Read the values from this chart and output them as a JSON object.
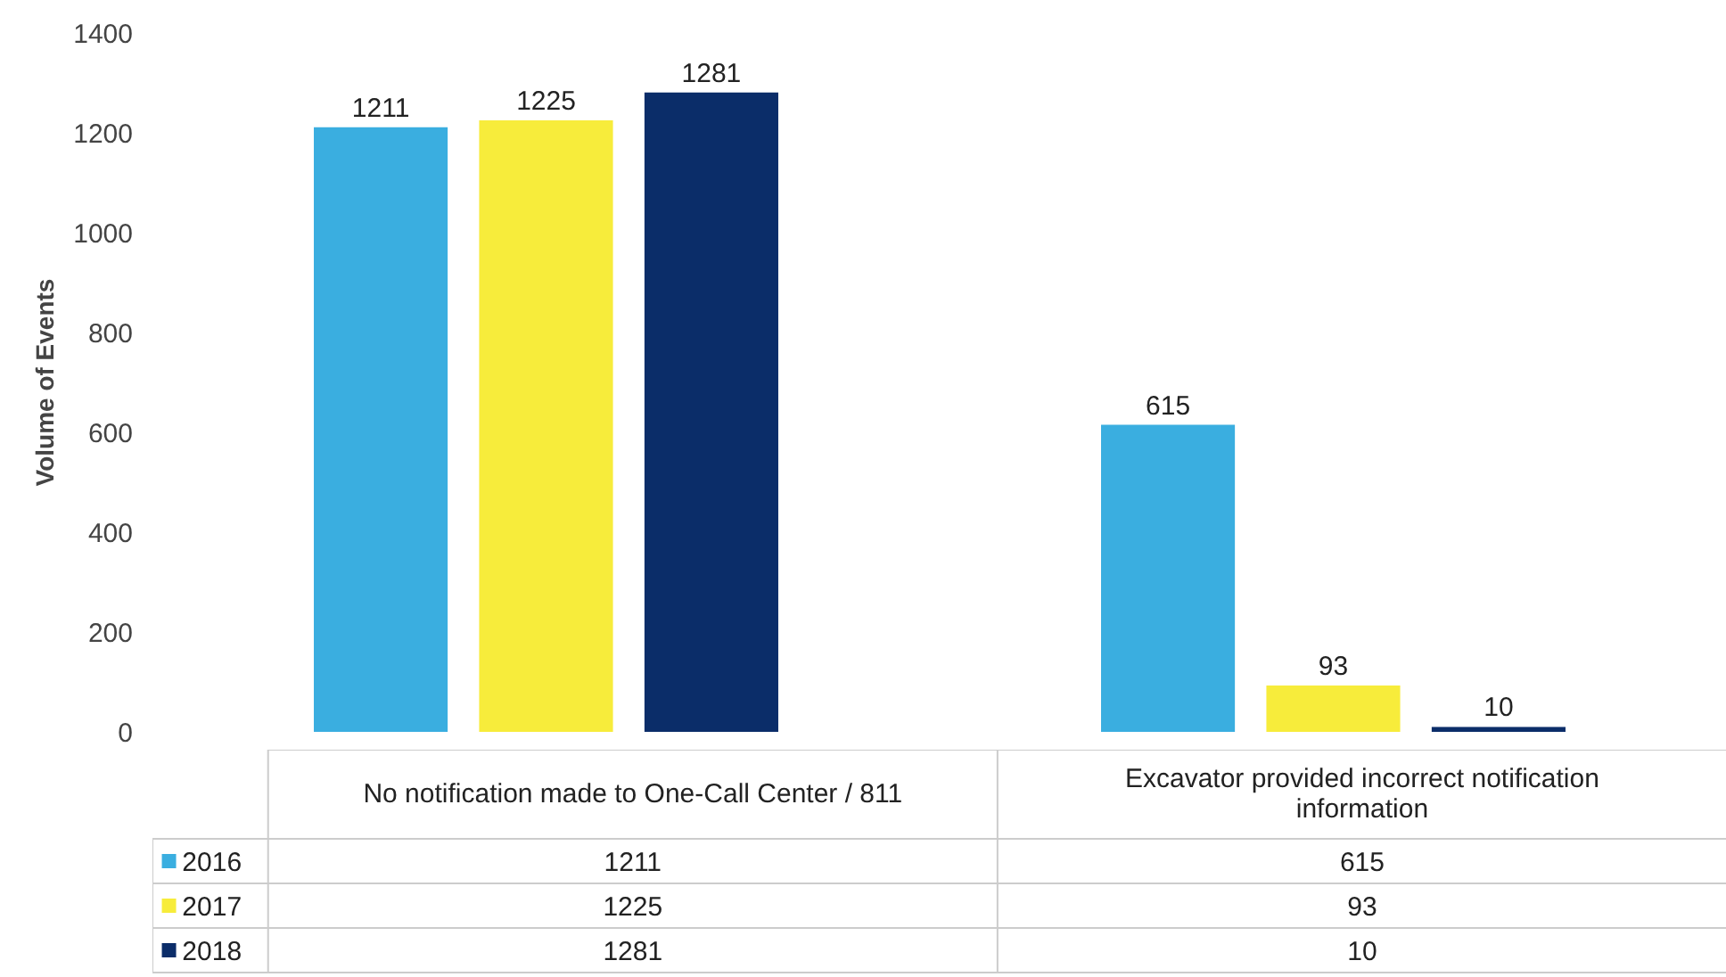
{
  "chart_data": {
    "type": "bar",
    "ylabel": "Volume of Events",
    "categories": [
      "No notification made to One-Call Center / 811",
      "Excavator provided incorrect notification information"
    ],
    "series": [
      {
        "name": "2016",
        "color": "#3aaee0",
        "values": [
          1211,
          615
        ],
        "value_labels": [
          "1211",
          "615"
        ]
      },
      {
        "name": "2017",
        "color": "#f7ec3b",
        "values": [
          1225,
          93
        ],
        "value_labels": [
          "1225",
          "93"
        ]
      },
      {
        "name": "2018",
        "color": "#0b2d69",
        "values": [
          1281,
          10
        ],
        "value_labels": [
          "1281",
          "10"
        ]
      }
    ],
    "ylim": [
      0,
      1400
    ],
    "yticks": [
      0,
      200,
      400,
      600,
      800,
      1000,
      1200,
      1400
    ],
    "data_labels": true,
    "grid": false,
    "legend": "bottom"
  }
}
